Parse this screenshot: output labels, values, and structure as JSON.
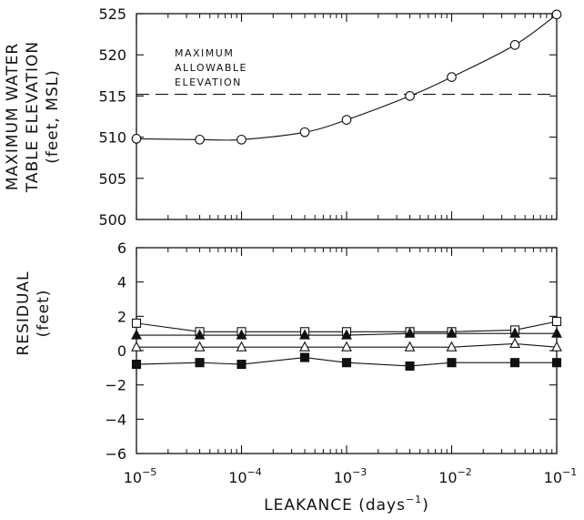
{
  "chart_data": {
    "type": "line",
    "x_scale": "log",
    "x_tick_labels": [
      {
        "base": "10",
        "exp": "−5"
      },
      {
        "base": "10",
        "exp": "−4"
      },
      {
        "base": "10",
        "exp": "−3"
      },
      {
        "base": "10",
        "exp": "−2"
      },
      {
        "base": "10",
        "exp": "−1"
      }
    ],
    "x_label": "LEAKANCE (days",
    "x_label_exp": "−1",
    "x_label_close": ")",
    "top": {
      "ylabel": [
        "MAXIMUM WATER",
        "TABLE ELEVATION",
        "(feet, MSL)"
      ],
      "ylim": [
        500,
        525
      ],
      "yticks": [
        500,
        505,
        510,
        515,
        520,
        525
      ],
      "annotation": [
        "MAXIMUM",
        "ALLOWABLE",
        "ELEVATION"
      ],
      "reference_line": 515.2,
      "series": [
        {
          "marker": "open-circle",
          "x": [
            1e-05,
            4e-05,
            0.0001,
            0.0004,
            0.001,
            0.004,
            0.01,
            0.04,
            0.1
          ],
          "y": [
            509.8,
            509.7,
            509.7,
            510.6,
            512.1,
            515.0,
            517.3,
            521.2,
            524.9
          ]
        }
      ]
    },
    "bottom": {
      "ylabel": [
        "RESIDUAL",
        "(feet)"
      ],
      "ylim": [
        -6,
        6
      ],
      "yticks": [
        -6,
        -4,
        -2,
        0,
        2,
        4,
        6
      ],
      "ytick_labels": [
        "−6",
        "−4",
        "−2",
        "0",
        "2",
        "4",
        "6"
      ],
      "series": [
        {
          "marker": "open-square",
          "x": [
            1e-05,
            4e-05,
            0.0001,
            0.0004,
            0.001,
            0.004,
            0.01,
            0.04,
            0.1
          ],
          "y": [
            1.6,
            1.1,
            1.1,
            1.1,
            1.1,
            1.1,
            1.1,
            1.2,
            1.7
          ]
        },
        {
          "marker": "filled-triangle",
          "x": [
            1e-05,
            4e-05,
            0.0001,
            0.0004,
            0.001,
            0.004,
            0.01,
            0.04,
            0.1
          ],
          "y": [
            0.9,
            0.9,
            0.9,
            0.9,
            0.9,
            1.0,
            1.0,
            1.0,
            1.0
          ]
        },
        {
          "marker": "open-triangle",
          "x": [
            1e-05,
            4e-05,
            0.0001,
            0.0004,
            0.001,
            0.004,
            0.01,
            0.04,
            0.1
          ],
          "y": [
            0.2,
            0.2,
            0.2,
            0.2,
            0.2,
            0.2,
            0.2,
            0.4,
            0.2
          ]
        },
        {
          "marker": "filled-square",
          "x": [
            1e-05,
            4e-05,
            0.0001,
            0.0004,
            0.001,
            0.004,
            0.01,
            0.04,
            0.1
          ],
          "y": [
            -0.8,
            -0.7,
            -0.8,
            -0.4,
            -0.7,
            -0.9,
            -0.7,
            -0.7,
            -0.7
          ]
        }
      ]
    }
  }
}
